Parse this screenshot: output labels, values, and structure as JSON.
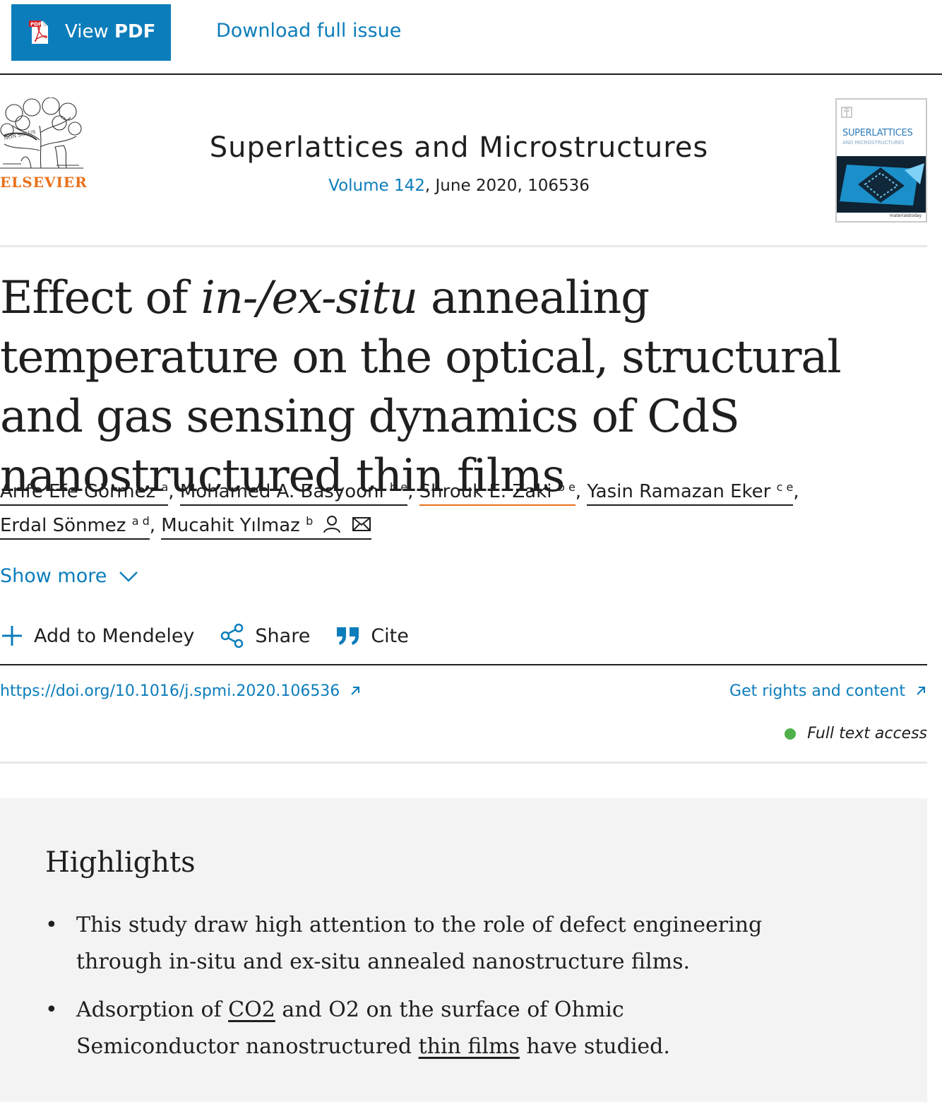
{
  "topbar": {
    "view_pdf_prefix": "View ",
    "view_pdf_bold": "PDF",
    "pdf_icon_text": "PDF",
    "download_label": "Download full issue"
  },
  "publisher": {
    "name": "ELSEVIER",
    "brand_color": "#e9711c"
  },
  "journal": {
    "title": "Superlattices and Microstructures",
    "volume_link": "Volume 142",
    "meta_rest": ", June 2020, 106536",
    "cover_title": "SUPERLATTICES",
    "cover_subtitle": "AND MICROSTRUCTURES",
    "cover_footer": "materialstoday"
  },
  "article": {
    "title_part1": "Effect of ",
    "title_italic": "in-/ex-situ",
    "title_part2": " annealing temperature on the optical, structural and gas sensing dynamics of CdS nanostructured thin films"
  },
  "authors": [
    {
      "name": "Arife Efe Görmez",
      "sup": "a"
    },
    {
      "name": "Mohamed A. Basyooni",
      "sup": "b e"
    },
    {
      "name": "Shrouk E. Zaki",
      "sup": "b e"
    },
    {
      "name": "Yasin Ramazan Eker",
      "sup": "c e"
    },
    {
      "name": "Erdal Sönmez",
      "sup": "a d"
    },
    {
      "name": "Mucahit Yılmaz",
      "sup": "b"
    }
  ],
  "show_more": "Show more",
  "actions": {
    "mendeley": "Add to Mendeley",
    "share": "Share",
    "cite": "Cite"
  },
  "doi": "https://doi.org/10.1016/j.spmi.2020.106536",
  "rights": "Get rights and content",
  "access": "Full text access",
  "highlights": {
    "title": "Highlights",
    "item1": "This study draw high attention to the role of defect engineering through in-situ and ex-situ annealed nanostructure films.",
    "item2_a": "Adsorption of ",
    "item2_link1": "CO2",
    "item2_b": " and O2 on the surface of Ohmic Semiconductor nanostructured ",
    "item2_link2": "thin films",
    "item2_c": " have studied."
  },
  "colors": {
    "link": "#0c7dbb",
    "button": "#0c7dbb",
    "access_dot": "#4db04a"
  }
}
